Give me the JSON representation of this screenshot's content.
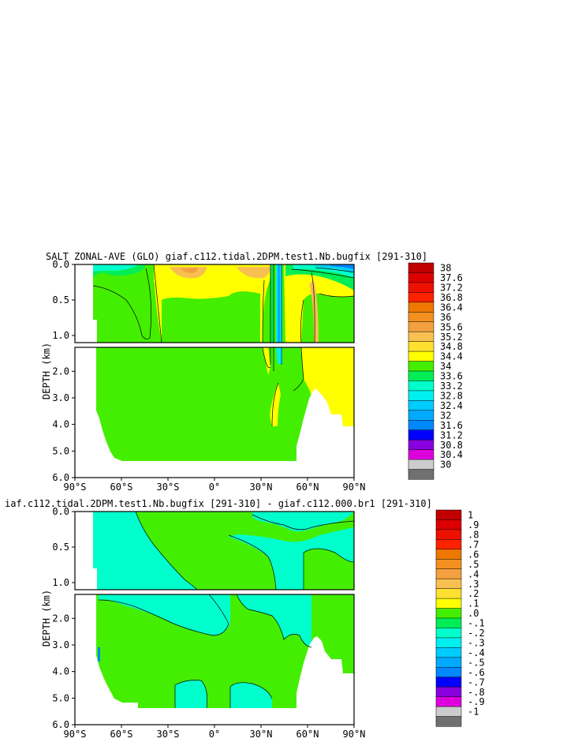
{
  "chart_data": [
    {
      "type": "heatmap",
      "title": "SALT ZONAL-AVE (GLO) giaf.c112.tidal.2DPM.test1.Nb.bugfix [291-310]",
      "ylabel": "DEPTH (km)",
      "x_ticks": [
        "90°S",
        "60°S",
        "30°S",
        "0°",
        "30°N",
        "60°N",
        "90°N"
      ],
      "y_ticks_upper": [
        "0.0",
        "0.5",
        "1.0"
      ],
      "y_ticks_lower": [
        "2.0",
        "3.0",
        "4.0",
        "5.0",
        "6.0"
      ],
      "xlim": [
        -90,
        90
      ],
      "ylim": [
        0,
        6.0
      ],
      "colorbar_labels": [
        "38",
        "37.6",
        "37.2",
        "36.8",
        "36.4",
        "36",
        "35.6",
        "35.2",
        "34.8",
        "34.4",
        "34",
        "33.6",
        "33.2",
        "32.8",
        "32.4",
        "32",
        "31.6",
        "31.2",
        "30.8",
        "30.4",
        "30"
      ],
      "colorbar_colors": [
        "#c00000",
        "#dd0000",
        "#ee1100",
        "#ff2200",
        "#ee7700",
        "#f49020",
        "#f4a040",
        "#f8c050",
        "#ffe030",
        "#ffff00",
        "#44ee00",
        "#00ee55",
        "#00ffcc",
        "#00f0f0",
        "#00ccff",
        "#00aaff",
        "#0088ff",
        "#0000ff",
        "#8800dd",
        "#dd00dd",
        "#cccccc",
        "#707070"
      ]
    },
    {
      "type": "heatmap",
      "title": "iaf.c112.tidal.2DPM.test1.Nb.bugfix [291-310] - giaf.c112.000.br1 [291-310]",
      "ylabel": "DEPTH (km)",
      "x_ticks": [
        "90°S",
        "60°S",
        "30°S",
        "0°",
        "30°N",
        "60°N",
        "90°N"
      ],
      "y_ticks_upper": [
        "0.0",
        "0.5",
        "1.0"
      ],
      "y_ticks_lower": [
        "2.0",
        "3.0",
        "4.0",
        "5.0",
        "6.0"
      ],
      "xlim": [
        -90,
        90
      ],
      "ylim": [
        0,
        6.0
      ],
      "colorbar_labels": [
        "1",
        ".9",
        ".8",
        ".7",
        ".6",
        ".5",
        ".4",
        ".3",
        ".2",
        ".1",
        ".0",
        "-.1",
        "-.2",
        "-.3",
        "-.4",
        "-.5",
        "-.6",
        "-.7",
        "-.8",
        "-.9",
        "-1"
      ],
      "colorbar_colors": [
        "#c00000",
        "#dd0000",
        "#ee1100",
        "#ff2200",
        "#ee7700",
        "#f49020",
        "#f4a040",
        "#f8c050",
        "#ffe030",
        "#ffff00",
        "#44ee00",
        "#00ee55",
        "#00ffcc",
        "#00f0f0",
        "#00ccff",
        "#00aaff",
        "#0088ff",
        "#0000ff",
        "#8800dd",
        "#dd00dd",
        "#cccccc",
        "#707070"
      ]
    }
  ]
}
